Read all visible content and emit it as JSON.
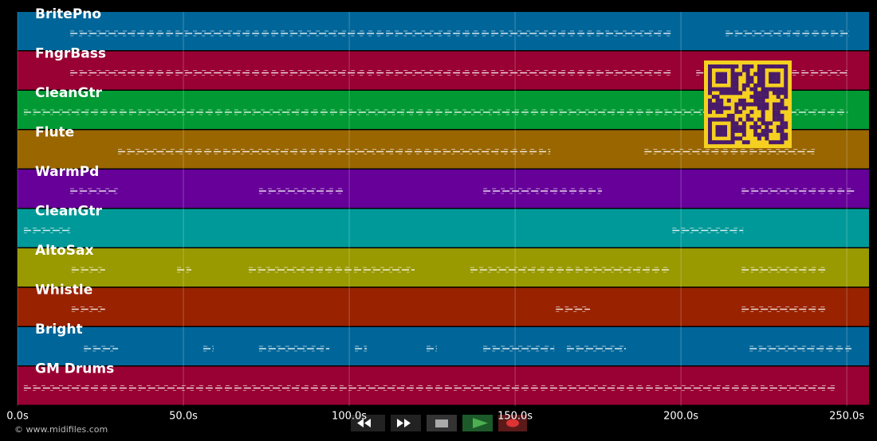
{
  "tracks": [
    {
      "name": "BritePno",
      "color": "#006699",
      "notes": [
        [
          15.9,
          197.4
        ],
        [
          213.5,
          250.7
        ]
      ]
    },
    {
      "name": "FngrBass",
      "color": "#990033",
      "notes": [
        [
          15.9,
          197.4
        ],
        [
          204.6,
          250.2
        ]
      ]
    },
    {
      "name": "CleanGtr",
      "color": "#009933",
      "notes": [
        [
          1.9,
          250.2
        ]
      ]
    },
    {
      "name": "Flute",
      "color": "#996600",
      "notes": [
        [
          30.3,
          160.6
        ],
        [
          189,
          240.4
        ]
      ]
    },
    {
      "name": "WarmPd",
      "color": "#660099",
      "notes": [
        [
          15.9,
          30.3
        ],
        [
          72.8,
          98.1
        ],
        [
          140.4,
          176.2
        ],
        [
          218.3,
          252.4
        ]
      ]
    },
    {
      "name": "CleanGtr",
      "color": "#009999",
      "notes": [
        [
          1.9,
          15.9
        ],
        [
          197.4,
          218.8
        ]
      ]
    },
    {
      "name": "AltoSax",
      "color": "#999900",
      "notes": [
        [
          16.3,
          26.4
        ],
        [
          48.1,
          52.4
        ],
        [
          69.7,
          119.7
        ],
        [
          136.5,
          196.6
        ],
        [
          218.3,
          243.5
        ]
      ]
    },
    {
      "name": "Whistle",
      "color": "#992200",
      "notes": [
        [
          16.3,
          26.4
        ],
        [
          162.3,
          172.6
        ],
        [
          218.3,
          243.5
        ]
      ]
    },
    {
      "name": "Bright",
      "color": "#006699",
      "notes": [
        [
          20,
          30.3
        ],
        [
          56,
          59.1
        ],
        [
          72.8,
          94
        ],
        [
          101.7,
          105.3
        ],
        [
          123.3,
          126.4
        ],
        [
          140.4,
          161.8
        ],
        [
          165.6,
          183.4
        ],
        [
          220.7,
          251.4
        ]
      ]
    },
    {
      "name": "GM Drums",
      "color": "#990033",
      "notes": [
        [
          1.9,
          246.6
        ]
      ]
    }
  ],
  "time_axis": {
    "xlim": [
      0,
      256.7
    ],
    "ticks": [
      {
        "value": 0,
        "label": "0.0s"
      },
      {
        "value": 50,
        "label": "50.0s"
      },
      {
        "value": 100,
        "label": "100.0s"
      },
      {
        "value": 150,
        "label": "150.0s"
      },
      {
        "value": 200,
        "label": "200.0s"
      },
      {
        "value": 250,
        "label": "250.0s"
      }
    ]
  },
  "footer": "© www.midifiles.com"
}
